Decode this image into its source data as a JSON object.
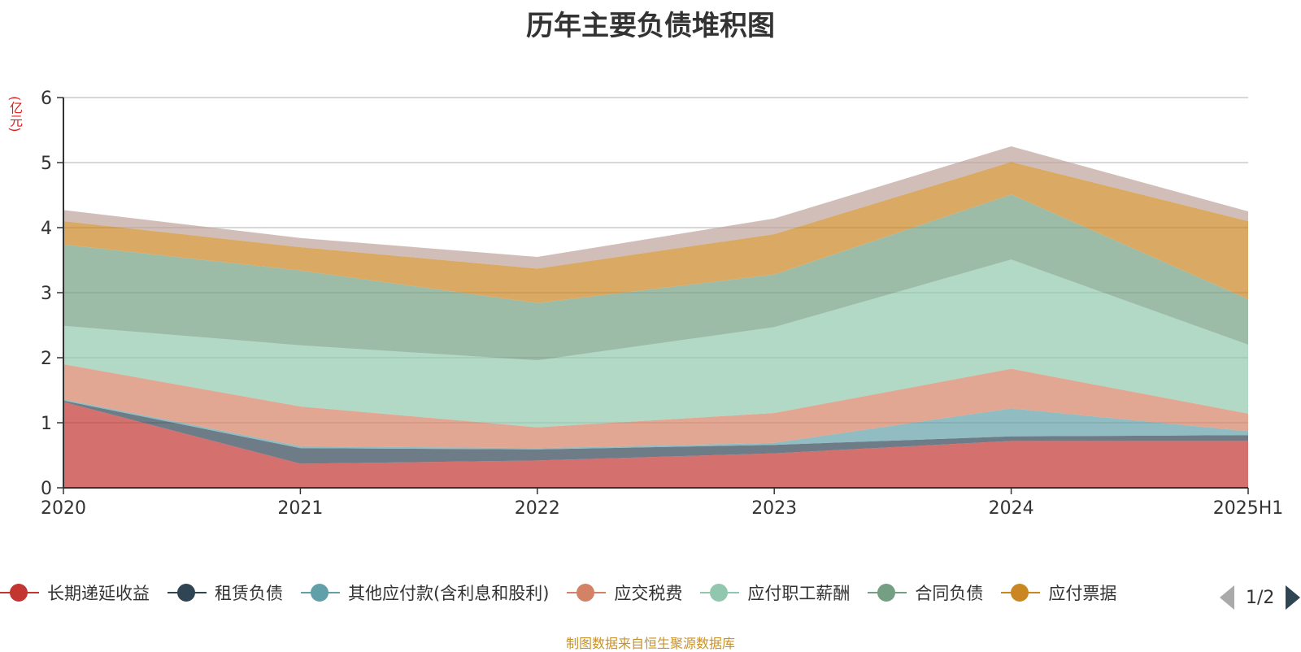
{
  "chart_data": {
    "type": "area",
    "stacked": true,
    "title": "历年主要负债堆积图",
    "ylabel": "(亿元)",
    "xlabel": "",
    "categories": [
      "2020",
      "2021",
      "2022",
      "2023",
      "2024",
      "2025H1"
    ],
    "ylim": [
      0,
      6
    ],
    "yticks": [
      "0",
      "1",
      "2",
      "3",
      "4",
      "5",
      "6"
    ],
    "grid": true,
    "legend_position": "bottom",
    "series": [
      {
        "name": "长期递延收益",
        "color": "#c23531",
        "values": [
          1.32,
          0.37,
          0.42,
          0.53,
          0.72,
          0.72
        ]
      },
      {
        "name": "租赁负债",
        "color": "#2f4554",
        "values": [
          0.02,
          0.24,
          0.17,
          0.13,
          0.07,
          0.09
        ]
      },
      {
        "name": "其他应付款(含利息和股利)",
        "color": "#61a0a8",
        "values": [
          0.02,
          0.03,
          0.02,
          0.03,
          0.43,
          0.06
        ]
      },
      {
        "name": "应交税费",
        "color": "#d48265",
        "values": [
          0.54,
          0.61,
          0.32,
          0.46,
          0.61,
          0.27
        ]
      },
      {
        "name": "应付职工薪酬",
        "color": "#91c7ae",
        "values": [
          0.59,
          0.94,
          1.03,
          1.32,
          1.68,
          1.06
        ]
      },
      {
        "name": "合同负债",
        "color": "#749f83",
        "values": [
          1.25,
          1.15,
          0.88,
          0.81,
          1.0,
          0.7
        ]
      },
      {
        "name": "应付票据",
        "color": "#ca8622",
        "values": [
          0.36,
          0.36,
          0.53,
          0.62,
          0.5,
          1.2
        ]
      },
      {
        "name": "",
        "color": "#bda29a",
        "values": [
          0.17,
          0.14,
          0.18,
          0.24,
          0.24,
          0.15
        ]
      }
    ]
  },
  "legend": {
    "page_indicator": "1/2",
    "items": [
      {
        "label": "长期递延收益",
        "color": "#c23531"
      },
      {
        "label": "租赁负债",
        "color": "#2f4554"
      },
      {
        "label": "其他应付款(含利息和股利)",
        "color": "#61a0a8"
      },
      {
        "label": "应交税费",
        "color": "#d48265"
      },
      {
        "label": "应付职工薪酬",
        "color": "#91c7ae"
      },
      {
        "label": "合同负债",
        "color": "#749f83"
      },
      {
        "label": "应付票据",
        "color": "#ca8622"
      }
    ]
  },
  "source": "制图数据来自恒生聚源数据库"
}
